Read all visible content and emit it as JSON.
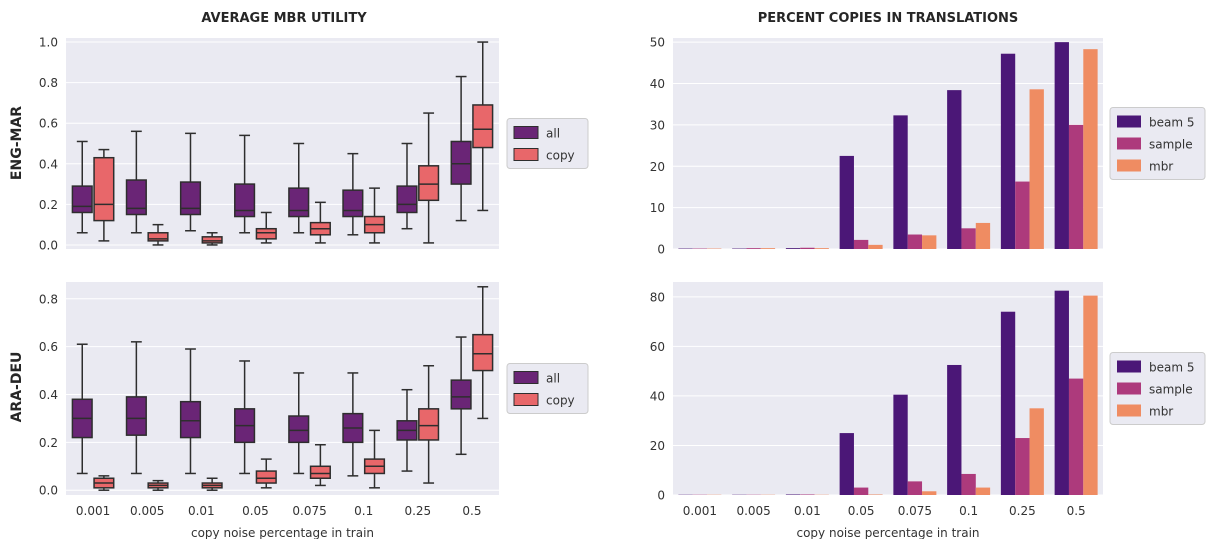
{
  "titles": {
    "left": "AVERAGE MBR UTILITY",
    "right": "PERCENT COPIES IN TRANSLATIONS"
  },
  "row_labels": [
    "ENG-MAR",
    "ARA-DEU"
  ],
  "xlabel": "copy noise percentage in train",
  "colors": {
    "background": "#eaeaf2",
    "grid": "#ffffff",
    "box_all": "#6a2576",
    "box_copy": "#e8676a",
    "whisker": "#2e2e2e",
    "bar_beam": "#4b1777",
    "bar_sample": "#ad3a7c",
    "bar_mbr": "#ef8c62"
  },
  "chart_data": [
    {
      "type": "box",
      "title": "AVERAGE MBR UTILITY",
      "row": "ENG-MAR",
      "categories": [
        "0.001",
        "0.005",
        "0.01",
        "0.05",
        "0.075",
        "0.1",
        "0.25",
        "0.5"
      ],
      "ylim": [
        -0.02,
        1.02
      ],
      "yticks": [
        "0.0",
        "0.2",
        "0.4",
        "0.6",
        "0.8",
        "1.0"
      ],
      "legend": {
        "position": "right",
        "entries": [
          "all",
          "copy"
        ]
      },
      "series": [
        {
          "name": "all",
          "boxes": [
            {
              "lo": 0.06,
              "q1": 0.16,
              "med": 0.19,
              "q3": 0.29,
              "hi": 0.51
            },
            {
              "lo": 0.06,
              "q1": 0.15,
              "med": 0.18,
              "q3": 0.32,
              "hi": 0.56
            },
            {
              "lo": 0.07,
              "q1": 0.15,
              "med": 0.18,
              "q3": 0.31,
              "hi": 0.55
            },
            {
              "lo": 0.06,
              "q1": 0.14,
              "med": 0.17,
              "q3": 0.3,
              "hi": 0.54
            },
            {
              "lo": 0.06,
              "q1": 0.14,
              "med": 0.17,
              "q3": 0.28,
              "hi": 0.5
            },
            {
              "lo": 0.05,
              "q1": 0.14,
              "med": 0.17,
              "q3": 0.27,
              "hi": 0.45
            },
            {
              "lo": 0.08,
              "q1": 0.16,
              "med": 0.2,
              "q3": 0.29,
              "hi": 0.5
            },
            {
              "lo": 0.12,
              "q1": 0.3,
              "med": 0.4,
              "q3": 0.51,
              "hi": 0.83
            }
          ]
        },
        {
          "name": "copy",
          "boxes": [
            {
              "lo": 0.02,
              "q1": 0.12,
              "med": 0.2,
              "q3": 0.43,
              "hi": 0.47
            },
            {
              "lo": 0.0,
              "q1": 0.02,
              "med": 0.03,
              "q3": 0.06,
              "hi": 0.1
            },
            {
              "lo": 0.0,
              "q1": 0.01,
              "med": 0.02,
              "q3": 0.04,
              "hi": 0.06
            },
            {
              "lo": 0.01,
              "q1": 0.03,
              "med": 0.06,
              "q3": 0.08,
              "hi": 0.16
            },
            {
              "lo": 0.01,
              "q1": 0.05,
              "med": 0.08,
              "q3": 0.11,
              "hi": 0.21
            },
            {
              "lo": 0.01,
              "q1": 0.06,
              "med": 0.1,
              "q3": 0.14,
              "hi": 0.28
            },
            {
              "lo": 0.01,
              "q1": 0.22,
              "med": 0.3,
              "q3": 0.39,
              "hi": 0.65
            },
            {
              "lo": 0.17,
              "q1": 0.48,
              "med": 0.57,
              "q3": 0.69,
              "hi": 1.0
            }
          ]
        }
      ]
    },
    {
      "type": "bar",
      "title": "PERCENT COPIES IN TRANSLATIONS",
      "row": "ENG-MAR",
      "categories": [
        "0.001",
        "0.005",
        "0.01",
        "0.05",
        "0.075",
        "0.1",
        "0.25",
        "0.5"
      ],
      "ylim": [
        0,
        51
      ],
      "yticks": [
        "0",
        "10",
        "20",
        "30",
        "40",
        "50"
      ],
      "legend": {
        "position": "right",
        "entries": [
          "beam 5",
          "sample",
          "mbr"
        ]
      },
      "series": [
        {
          "name": "beam 5",
          "values": [
            0.1,
            0.1,
            0.2,
            22.5,
            32.3,
            38.4,
            47.2,
            50.0
          ]
        },
        {
          "name": "sample",
          "values": [
            0.1,
            0.2,
            0.3,
            2.2,
            3.5,
            5.0,
            16.3,
            30.0
          ]
        },
        {
          "name": "mbr",
          "values": [
            0.1,
            0.2,
            0.2,
            1.0,
            3.3,
            6.3,
            38.6,
            48.3
          ]
        }
      ]
    },
    {
      "type": "box",
      "title": "",
      "row": "ARA-DEU",
      "categories": [
        "0.001",
        "0.005",
        "0.01",
        "0.05",
        "0.075",
        "0.1",
        "0.25",
        "0.5"
      ],
      "xlabel": "copy noise percentage in train",
      "ylim": [
        -0.02,
        0.87
      ],
      "yticks": [
        "0.0",
        "0.2",
        "0.4",
        "0.6",
        "0.8"
      ],
      "legend": {
        "position": "right",
        "entries": [
          "all",
          "copy"
        ]
      },
      "series": [
        {
          "name": "all",
          "boxes": [
            {
              "lo": 0.07,
              "q1": 0.22,
              "med": 0.3,
              "q3": 0.38,
              "hi": 0.61
            },
            {
              "lo": 0.07,
              "q1": 0.23,
              "med": 0.3,
              "q3": 0.39,
              "hi": 0.62
            },
            {
              "lo": 0.07,
              "q1": 0.22,
              "med": 0.29,
              "q3": 0.37,
              "hi": 0.59
            },
            {
              "lo": 0.07,
              "q1": 0.2,
              "med": 0.27,
              "q3": 0.34,
              "hi": 0.54
            },
            {
              "lo": 0.07,
              "q1": 0.2,
              "med": 0.25,
              "q3": 0.31,
              "hi": 0.49
            },
            {
              "lo": 0.06,
              "q1": 0.2,
              "med": 0.26,
              "q3": 0.32,
              "hi": 0.49
            },
            {
              "lo": 0.08,
              "q1": 0.21,
              "med": 0.25,
              "q3": 0.29,
              "hi": 0.42
            },
            {
              "lo": 0.15,
              "q1": 0.34,
              "med": 0.39,
              "q3": 0.46,
              "hi": 0.64
            }
          ]
        },
        {
          "name": "copy",
          "boxes": [
            {
              "lo": 0.0,
              "q1": 0.01,
              "med": 0.03,
              "q3": 0.05,
              "hi": 0.06
            },
            {
              "lo": 0.0,
              "q1": 0.01,
              "med": 0.02,
              "q3": 0.03,
              "hi": 0.04
            },
            {
              "lo": 0.0,
              "q1": 0.01,
              "med": 0.02,
              "q3": 0.03,
              "hi": 0.05
            },
            {
              "lo": 0.01,
              "q1": 0.03,
              "med": 0.05,
              "q3": 0.08,
              "hi": 0.13
            },
            {
              "lo": 0.02,
              "q1": 0.05,
              "med": 0.07,
              "q3": 0.1,
              "hi": 0.19
            },
            {
              "lo": 0.01,
              "q1": 0.07,
              "med": 0.1,
              "q3": 0.13,
              "hi": 0.25
            },
            {
              "lo": 0.03,
              "q1": 0.21,
              "med": 0.27,
              "q3": 0.34,
              "hi": 0.52
            },
            {
              "lo": 0.3,
              "q1": 0.5,
              "med": 0.57,
              "q3": 0.65,
              "hi": 0.85
            }
          ]
        }
      ]
    },
    {
      "type": "bar",
      "title": "",
      "row": "ARA-DEU",
      "categories": [
        "0.001",
        "0.005",
        "0.01",
        "0.05",
        "0.075",
        "0.1",
        "0.25",
        "0.5"
      ],
      "xlabel": "copy noise percentage in train",
      "ylim": [
        0,
        86
      ],
      "yticks": [
        "0",
        "20",
        "40",
        "60",
        "80"
      ],
      "legend": {
        "position": "right",
        "entries": [
          "beam 5",
          "sample",
          "mbr"
        ]
      },
      "series": [
        {
          "name": "beam 5",
          "values": [
            0.1,
            0.1,
            0.2,
            25.0,
            40.5,
            52.5,
            74.0,
            82.5
          ]
        },
        {
          "name": "sample",
          "values": [
            0.1,
            0.1,
            0.2,
            3.0,
            5.5,
            8.5,
            23.0,
            47.0
          ]
        },
        {
          "name": "mbr",
          "values": [
            0.1,
            0.1,
            0.1,
            0.2,
            1.5,
            3.0,
            35.0,
            80.5
          ]
        }
      ]
    }
  ]
}
